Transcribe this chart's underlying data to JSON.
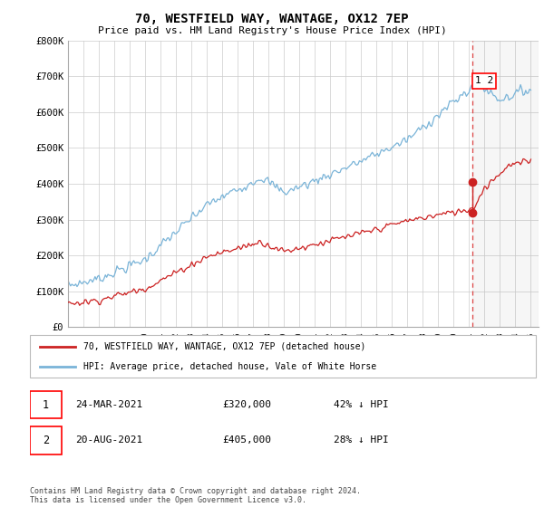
{
  "title": "70, WESTFIELD WAY, WANTAGE, OX12 7EP",
  "subtitle": "Price paid vs. HM Land Registry's House Price Index (HPI)",
  "ylim": [
    0,
    800000
  ],
  "yticks": [
    0,
    100000,
    200000,
    300000,
    400000,
    500000,
    600000,
    700000,
    800000
  ],
  "ytick_labels": [
    "£0",
    "£100K",
    "£200K",
    "£300K",
    "£400K",
    "£500K",
    "£600K",
    "£700K",
    "£800K"
  ],
  "hpi_color": "#7ab4d8",
  "price_color": "#cc2222",
  "vline_color": "#dd4444",
  "background_color": "#ffffff",
  "grid_color": "#cccccc",
  "legend_label_price": "70, WESTFIELD WAY, WANTAGE, OX12 7EP (detached house)",
  "legend_label_hpi": "HPI: Average price, detached house, Vale of White Horse",
  "annotation_1_date": "24-MAR-2021",
  "annotation_1_price": "£320,000",
  "annotation_1_pct": "42% ↓ HPI",
  "annotation_2_date": "20-AUG-2021",
  "annotation_2_price": "£405,000",
  "annotation_2_pct": "28% ↓ HPI",
  "footer": "Contains HM Land Registry data © Crown copyright and database right 2024.\nThis data is licensed under the Open Government Licence v3.0.",
  "sale_1_x": 2021.23,
  "sale_1_y": 320000,
  "sale_2_x": 2021.23,
  "sale_2_y": 405000,
  "vline_x": 2021.23,
  "xlim_left": 1995,
  "xlim_right": 2025.5
}
